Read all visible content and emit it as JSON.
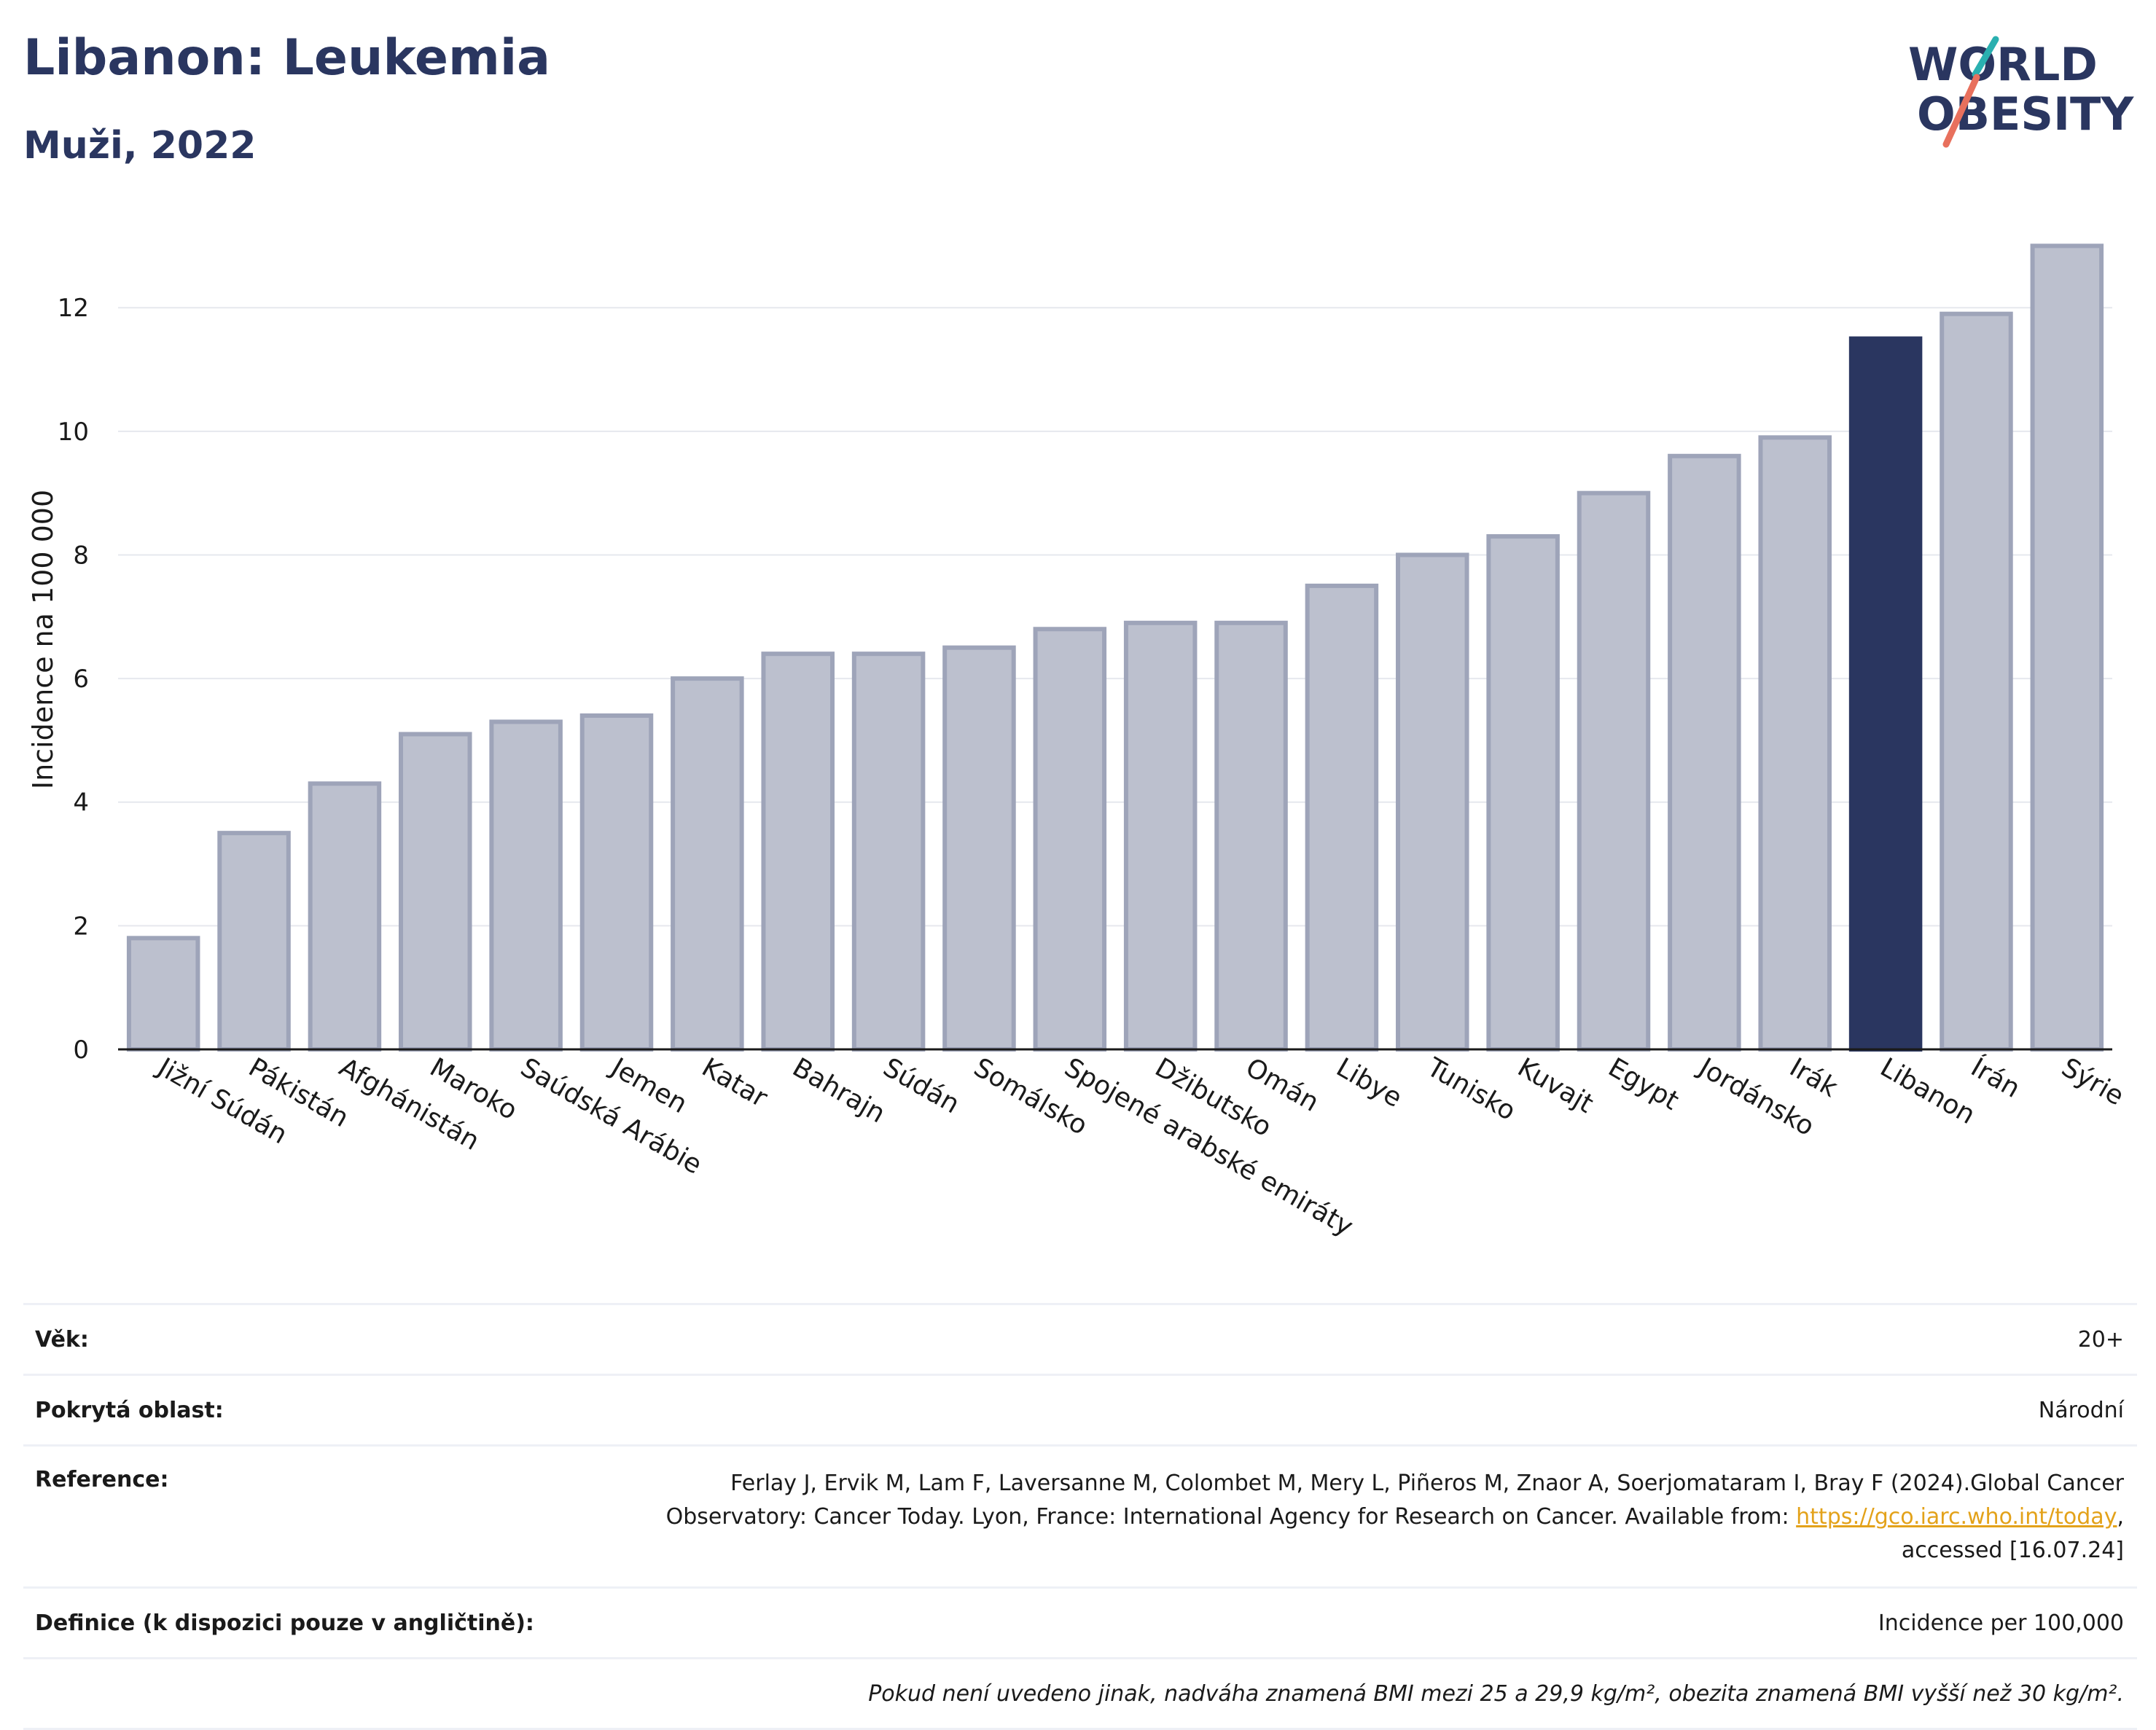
{
  "header": {
    "title": "Libanon: Leukemia",
    "subtitle": "Muži, 2022"
  },
  "logo": {
    "line1": "WORLD",
    "line2": "OBESITY"
  },
  "colors": {
    "bar": "#bcc0ce",
    "bar_border": "#9ea4b9",
    "highlight": "#2a3660",
    "title": "#2a3660",
    "logo_teal": "#2ab0b0",
    "logo_coral": "#e8705d",
    "grid": "#e6e8ee",
    "link": "#e3a21a"
  },
  "chart_data": {
    "type": "bar",
    "ylabel": "Incidence na 100 000",
    "ylim": [
      0,
      13.5
    ],
    "yticks": [
      0,
      2,
      4,
      6,
      8,
      10,
      12
    ],
    "grid": true,
    "highlight": "Libanon",
    "categories": [
      "Jižní Súdán",
      "Pákistán",
      "Afghánistán",
      "Maroko",
      "Saúdská Arábie",
      "Jemen",
      "Katar",
      "Bahrajn",
      "Súdán",
      "Somálsko",
      "Spojené arabské emiráty",
      "Džibutsko",
      "Omán",
      "Libye",
      "Tunisko",
      "Kuvajt",
      "Egypt",
      "Jordánsko",
      "Irák",
      "Libanon",
      "Írán",
      "Sýrie"
    ],
    "values": [
      1.8,
      3.5,
      4.3,
      5.1,
      5.3,
      5.4,
      6.0,
      6.4,
      6.4,
      6.5,
      6.8,
      6.9,
      6.9,
      7.5,
      8.0,
      8.3,
      9.0,
      9.6,
      9.9,
      11.5,
      11.9,
      13.0
    ]
  },
  "info": {
    "age_label": "Věk:",
    "age_value": "20+",
    "area_label": "Pokrytá oblast:",
    "area_value": "Národní",
    "reference_label": "Reference:",
    "reference_line1": "Ferlay J, Ervik M, Lam F, Laversanne M, Colombet M, Mery L, Piñeros M, Znaor A, Soerjomataram I, Bray F (2024).Global Cancer",
    "reference_line2": "Observatory: Cancer Today. Lyon, France: International Agency for Research on Cancer. Available from: ",
    "reference_link": "https://gco.iarc.who.int/today",
    "reference_line2_end": ",",
    "reference_line3": "accessed [16.07.24]",
    "definition_label": "Definice (k dispozici pouze v angličtině):",
    "definition_value": "Incidence per 100,000",
    "note": "Pokud není uvedeno jinak, nadváha znamená BMI mezi 25 a 29,9 kg/m², obezita znamená BMI vyšší než 30 kg/m²."
  }
}
